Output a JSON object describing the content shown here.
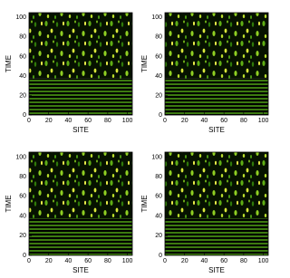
{
  "chart_data": [
    {
      "type": "heatmap",
      "xlabel": "SITE",
      "ylabel": "TIME",
      "xlim": [
        0,
        105
      ],
      "ylim": [
        0,
        105
      ],
      "xticks": [
        0,
        20,
        40,
        60,
        80,
        100
      ],
      "yticks": [
        0,
        20,
        40,
        60,
        80,
        100
      ]
    },
    {
      "type": "heatmap",
      "xlabel": "SITE",
      "ylabel": "TIME",
      "xlim": [
        0,
        105
      ],
      "ylim": [
        0,
        105
      ],
      "xticks": [
        0,
        20,
        40,
        60,
        80,
        100
      ],
      "yticks": [
        0,
        20,
        40,
        60,
        80,
        100
      ]
    },
    {
      "type": "heatmap",
      "xlabel": "SITE",
      "ylabel": "TIME",
      "xlim": [
        0,
        105
      ],
      "ylim": [
        0,
        105
      ],
      "xticks": [
        0,
        20,
        40,
        60,
        80,
        100
      ],
      "yticks": [
        0,
        20,
        40,
        60,
        80,
        100
      ]
    },
    {
      "type": "heatmap",
      "xlabel": "SITE",
      "ylabel": "TIME",
      "xlim": [
        0,
        105
      ],
      "ylim": [
        0,
        105
      ],
      "xticks": [
        0,
        20,
        40,
        60,
        80,
        100
      ],
      "yticks": [
        0,
        20,
        40,
        60,
        80,
        100
      ]
    }
  ]
}
